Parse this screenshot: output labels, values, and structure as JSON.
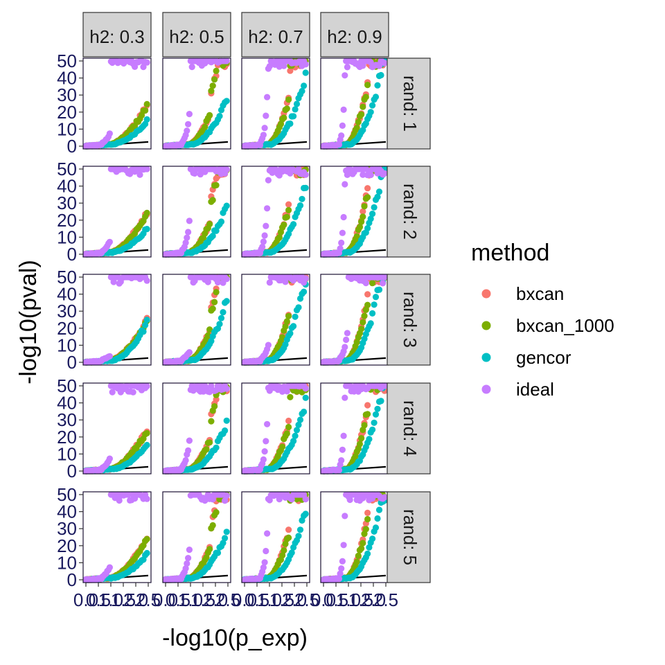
{
  "chart_data": {
    "type": "scatter",
    "facet_layout": {
      "columns_label": "h2",
      "rows_label": "rand",
      "columns": [
        "h2: 0.3",
        "h2: 0.5",
        "h2: 0.7",
        "h2: 0.9"
      ],
      "rows": [
        "rand: 1",
        "rand: 2",
        "rand: 3",
        "rand: 4",
        "rand: 5"
      ]
    },
    "xlabel": "-log10(p_exp)",
    "ylabel": "-log10(pval)",
    "xlim": [
      0,
      2.5
    ],
    "ylim": [
      0,
      50
    ],
    "x_ticks": [
      0.0,
      0.5,
      1.0,
      1.5,
      2.0,
      2.5
    ],
    "x_tick_labels": [
      "0.0",
      "0.5",
      "1.0",
      "1.5",
      "2.0",
      "2.5"
    ],
    "y_ticks": [
      0,
      10,
      20,
      30,
      40,
      50
    ],
    "y_tick_labels": [
      "0",
      "10",
      "20",
      "30",
      "40",
      "50"
    ],
    "reference_line": "y = x",
    "legend": {
      "title": "method",
      "placement": "right",
      "entries": [
        {
          "name": "bxcan",
          "color": "#F8766D"
        },
        {
          "name": "bxcan_1000",
          "color": "#7CAE00"
        },
        {
          "name": "gencor",
          "color": "#00BFC4"
        },
        {
          "name": "ideal",
          "color": "#C77CFF"
        }
      ]
    },
    "panel_colors": {
      "strip_fill": "#d3d3d3",
      "strip_border": "#333333",
      "panel_border": "#1a1033",
      "tick_text": "#1a1a5e"
    }
  }
}
